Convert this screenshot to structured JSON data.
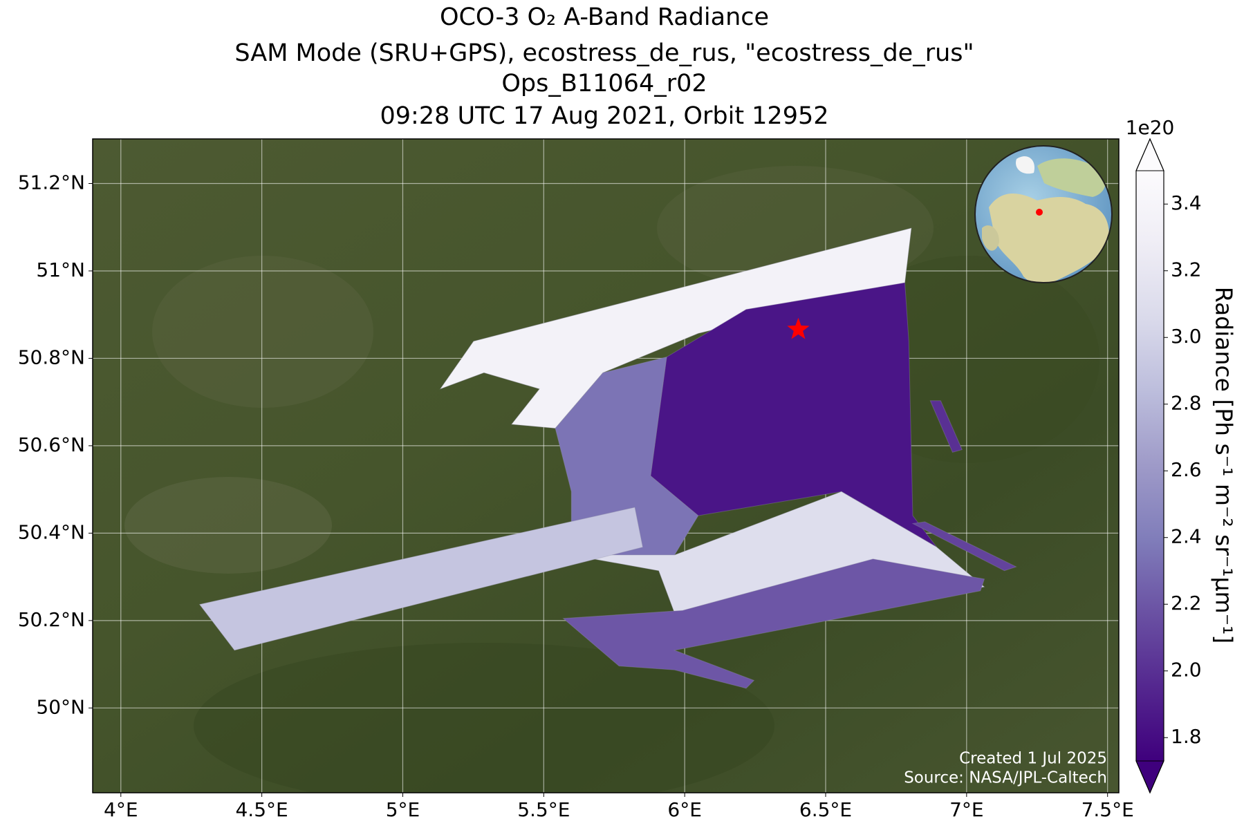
{
  "chart_data": {
    "type": "map",
    "title": [
      "OCO-3 O₂ A-Band Radiance",
      "SAM Mode (SRU+GPS), ecostress_de_rus, \"ecostress_de_rus\"",
      "Ops_B11064_r02",
      "09:28 UTC 17 Aug 2021, Orbit 12952"
    ],
    "xlim": [
      3.9,
      7.54
    ],
    "ylim": [
      49.806,
      51.302
    ],
    "xticks": [
      {
        "value": 4,
        "label": "4°E"
      },
      {
        "value": 4.5,
        "label": "4.5°E"
      },
      {
        "value": 5,
        "label": "5°E"
      },
      {
        "value": 5.5,
        "label": "5.5°E"
      },
      {
        "value": 6,
        "label": "6°E"
      },
      {
        "value": 6.5,
        "label": "6.5°E"
      },
      {
        "value": 7,
        "label": "7°E"
      },
      {
        "value": 7.5,
        "label": "7.5°E"
      }
    ],
    "yticks": [
      {
        "value": 50,
        "label": "50°N"
      },
      {
        "value": 50.2,
        "label": "50.2°N"
      },
      {
        "value": 50.4,
        "label": "50.4°N"
      },
      {
        "value": 50.6,
        "label": "50.6°N"
      },
      {
        "value": 50.8,
        "label": "50.8°N"
      },
      {
        "value": 51,
        "label": "51°N"
      },
      {
        "value": 51.2,
        "label": "51.2°N"
      }
    ],
    "grid": true,
    "colorbar": {
      "label": "Radiance [Ph s⁻¹ m⁻² sr⁻¹μm⁻¹]",
      "offset_label": "1e20",
      "clim": [
        1.73,
        3.5
      ],
      "ticks": [
        1.8,
        {
          "value": 2,
          "label": "2.0"
        },
        2.2,
        2.4,
        2.6,
        2.8,
        {
          "value": 3,
          "label": "3.0"
        },
        3.2,
        3.4
      ],
      "colormap": [
        "#3f007d",
        "#54278f",
        "#6a51a3",
        "#807dba",
        "#9e9ac8",
        "#bcbddc",
        "#dadaeb",
        "#efedf5",
        "#fcfbfd"
      ]
    },
    "regions": [
      {
        "value": 3.35,
        "lon": [
          5.133,
          5.251,
          6.804,
          6.781,
          6.048,
          5.71,
          5.541,
          5.386,
          5.485,
          5.288
        ],
        "lat": [
          50.73,
          50.839,
          51.098,
          50.973,
          50.857,
          50.767,
          50.64,
          50.649,
          50.73,
          50.767
        ]
      },
      {
        "value": 1.85,
        "lon": [
          6.218,
          6.781,
          6.795,
          6.809,
          6.894,
          6.556,
          6.048,
          5.879,
          5.936
        ],
        "lat": [
          50.912,
          50.973,
          50.839,
          50.44,
          50.368,
          50.495,
          50.44,
          50.531,
          50.803
        ]
      },
      {
        "value": 2.35,
        "lon": [
          5.71,
          5.936,
          5.879,
          6.048,
          5.964,
          5.598,
          5.598,
          5.541
        ],
        "lat": [
          50.767,
          50.803,
          50.531,
          50.44,
          50.35,
          50.35,
          50.495,
          50.64
        ]
      },
      {
        "value": 3.1,
        "lon": [
          5.598,
          5.964,
          6.556,
          6.894,
          7.063,
          6.246,
          5.992,
          5.908
        ],
        "lat": [
          50.35,
          50.35,
          50.495,
          50.368,
          50.277,
          50.187,
          50.169,
          50.314
        ]
      },
      {
        "value": 2.9,
        "lon": [
          4.279,
          5.823,
          5.851,
          4.403
        ],
        "lat": [
          50.237,
          50.459,
          50.368,
          50.132
        ]
      },
      {
        "value": 2.2,
        "lon": [
          5.569,
          5.992,
          6.668,
          7.063,
          7.049,
          5.964,
          6.246,
          6.218,
          5.964,
          5.767
        ],
        "lat": [
          50.205,
          50.223,
          50.341,
          50.295,
          50.268,
          50.132,
          50.063,
          50.045,
          50.087,
          50.096
        ]
      },
      {
        "value": 2.0,
        "lon": [
          6.871,
          6.908,
          6.984,
          6.95
        ],
        "lat": [
          50.703,
          50.703,
          50.591,
          50.585
        ]
      },
      {
        "value": 2.1,
        "lon": [
          6.809,
          6.852,
          7.176,
          7.134
        ],
        "lat": [
          50.422,
          50.426,
          50.323,
          50.314
        ]
      }
    ],
    "target": {
      "lon": 6.403,
      "lat": 50.866,
      "color": "#ff0000"
    },
    "annotations": [
      "Created 1 Jul 2025",
      "Source: NASA/JPL-Caltech"
    ]
  }
}
